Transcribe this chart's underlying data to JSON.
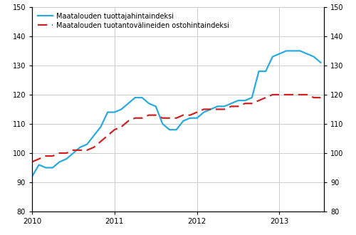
{
  "legend1": "Maatalouden tuottajahintaindeksi",
  "legend2": "Maatalouden tuotantovälineiden ostohintaindeksi",
  "ylim": [
    80,
    150
  ],
  "yticks": [
    80,
    90,
    100,
    110,
    120,
    130,
    140,
    150
  ],
  "xtick_labels": [
    "2010",
    "2011",
    "2012",
    "2013"
  ],
  "line1_color": "#29abe2",
  "line2_color": "#cc2222",
  "background_color": "#ffffff",
  "grid_color": "#cccccc",
  "producer_index": [
    92,
    96,
    95,
    95,
    97,
    98,
    100,
    102,
    103,
    106,
    109,
    114,
    114,
    115,
    117,
    119,
    119,
    117,
    116,
    110,
    108,
    108,
    111,
    112,
    112,
    114,
    115,
    116,
    116,
    117,
    118,
    118,
    119,
    128,
    128,
    133,
    134,
    135,
    135,
    135,
    134,
    133,
    131
  ],
  "purchase_index": [
    97,
    98,
    99,
    99,
    100,
    100,
    101,
    101,
    101,
    102,
    104,
    106,
    108,
    109,
    111,
    112,
    112,
    113,
    113,
    112,
    112,
    112,
    113,
    113,
    114,
    115,
    115,
    115,
    115,
    116,
    116,
    117,
    117,
    118,
    119,
    120,
    120,
    120,
    120,
    120,
    120,
    119,
    119
  ]
}
